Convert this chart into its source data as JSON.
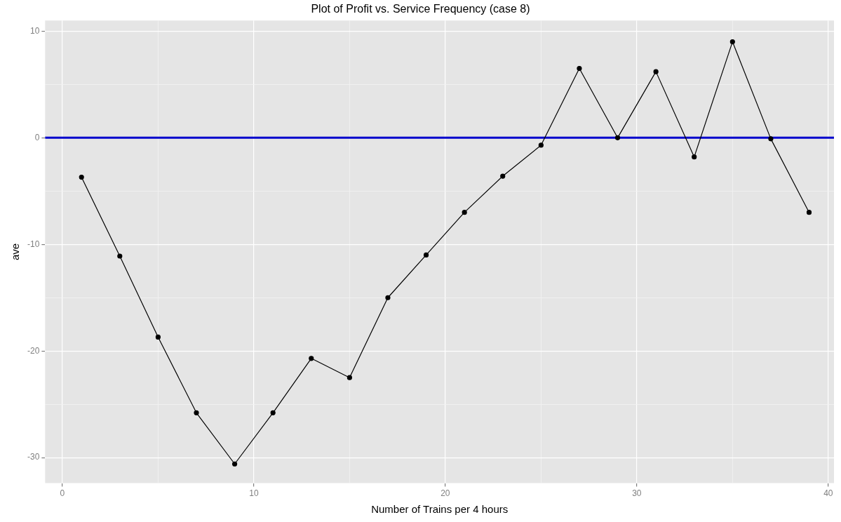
{
  "chart_data": {
    "type": "line",
    "title": "Plot of Profit vs. Service Frequency (case 8)",
    "xlabel": "Number of Trains per 4 hours",
    "ylabel": "ave",
    "x": [
      1,
      3,
      5,
      7,
      9,
      11,
      13,
      15,
      17,
      19,
      21,
      23,
      25,
      27,
      29,
      31,
      33,
      35,
      37,
      39
    ],
    "series": [
      {
        "color": "#000000",
        "values": [
          -3.7,
          -11.1,
          -18.7,
          -25.8,
          -30.6,
          -25.8,
          -20.7,
          -22.5,
          -15.0,
          -11.0,
          -7.0,
          -3.6,
          -0.7,
          6.5,
          0,
          6.2,
          -1.8,
          9.0,
          -0.1,
          -7.0
        ]
      }
    ],
    "xlim": [
      -0.9,
      40.3
    ],
    "ylim": [
      -32.4,
      11
    ],
    "xticks": [
      0,
      {
        "value": 5,
        "label": null
      },
      10,
      {
        "value": 15,
        "label": null
      },
      20,
      {
        "value": 25,
        "label": null
      },
      30,
      {
        "value": 35,
        "label": null
      },
      40
    ],
    "yticks": [
      -30,
      {
        "value": -25,
        "label": null
      },
      -20,
      {
        "value": -15,
        "label": null
      },
      -10,
      {
        "value": -5,
        "label": null
      },
      0,
      {
        "value": 5,
        "label": null
      },
      10
    ],
    "ref_lines": [
      {
        "axis": "y",
        "value": 0,
        "color": "#0000cc"
      }
    ],
    "grid": true,
    "legend": false,
    "marker": "circle",
    "line_style": "solid"
  }
}
